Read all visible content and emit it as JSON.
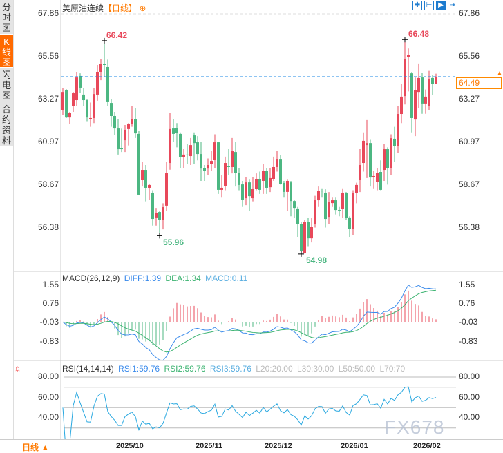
{
  "sidebar": {
    "tabs": [
      {
        "label": "分时图",
        "active": false
      },
      {
        "label": "K线图",
        "active": true
      },
      {
        "label": "闪电图",
        "active": false
      },
      {
        "label": "合约资料",
        "active": false
      }
    ]
  },
  "header": {
    "instrument": "美原油连续",
    "timeframe": "【日线】",
    "zoom_icon": "⊕"
  },
  "toolbar": {
    "icons": [
      "crosshair-icon",
      "range-icon",
      "play-icon",
      "jump-end-icon"
    ]
  },
  "colors": {
    "up": "#e8485a",
    "down": "#4cb782",
    "diff": "#3b8beb",
    "dea": "#3cb371",
    "rsi": "#29a8e0",
    "last_price": "#ff7a00",
    "last_line": "#1e88e5"
  },
  "main": {
    "y_ticks": [
      "67.86",
      "65.56",
      "63.27",
      "60.97",
      "58.67",
      "56.38"
    ],
    "last_price": "64.49",
    "high_labels": [
      {
        "text": "66.42",
        "index": 12
      },
      {
        "text": "66.48",
        "index": 99
      }
    ],
    "low_labels": [
      {
        "text": "55.96",
        "index": 28
      },
      {
        "text": "54.98",
        "index": 69
      }
    ]
  },
  "macd": {
    "label": "MACD(26,12,9)",
    "diff": "DIFF:1.39",
    "dea": "DEA:1.34",
    "macd": "MACD:0.11",
    "y_ticks": [
      "1.55",
      "0.76",
      "-0.03",
      "-0.83"
    ]
  },
  "rsi": {
    "label": "RSI(14,14,14)",
    "rsi1": "RSI1:59.76",
    "rsi2": "RSI2:59.76",
    "rsi3": "RSI3:59.76",
    "levels": [
      "L20:20.00",
      "L30:30.00",
      "L50:50.00",
      "L70:70"
    ],
    "y_ticks": [
      "80.00",
      "60.00",
      "40.00"
    ]
  },
  "bottom": {
    "period": "日线 ▲"
  },
  "watermark": "FX678",
  "chart_data": {
    "type": "candlestick",
    "title": "美原油连续【日线】",
    "ylim": [
      54.6,
      68.1
    ],
    "x_labels": [
      {
        "label": "2025/10",
        "index": 15
      },
      {
        "label": "2025/11",
        "index": 38
      },
      {
        "label": "2025/12",
        "index": 58
      },
      {
        "label": "2026/01",
        "index": 80
      },
      {
        "label": "2026/02",
        "index": 101
      }
    ],
    "ohlc": [
      [
        62.71,
        63.9,
        62.45,
        63.67
      ],
      [
        63.75,
        63.82,
        62.27,
        62.3
      ],
      [
        62.3,
        62.6,
        61.95,
        62.53
      ],
      [
        62.93,
        63.67,
        62.6,
        63.6
      ],
      [
        63.23,
        64.75,
        62.9,
        64.45
      ],
      [
        64.53,
        64.67,
        63.6,
        63.9
      ],
      [
        63.53,
        63.9,
        62.9,
        63.23
      ],
      [
        63.23,
        63.3,
        62.1,
        62.3
      ],
      [
        62.23,
        63.1,
        61.8,
        62.27
      ],
      [
        62.27,
        63.9,
        62.0,
        63.56
      ],
      [
        63.53,
        65.12,
        63.2,
        64.75
      ],
      [
        64.75,
        65.45,
        64.3,
        65.16
      ],
      [
        65.16,
        66.42,
        64.5,
        65.12
      ],
      [
        65.01,
        65.4,
        62.9,
        63.16
      ],
      [
        63.08,
        63.3,
        61.8,
        62.38
      ],
      [
        62.38,
        62.6,
        61.35,
        61.71
      ],
      [
        61.71,
        62.2,
        60.31,
        60.6
      ],
      [
        60.64,
        61.7,
        60.45,
        60.6
      ],
      [
        61.08,
        61.9,
        60.45,
        61.64
      ],
      [
        61.68,
        62.0,
        60.8,
        61.97
      ],
      [
        61.97,
        62.9,
        61.8,
        62.23
      ],
      [
        62.23,
        62.8,
        61.2,
        61.45
      ],
      [
        61.42,
        61.6,
        58.16,
        58.16
      ],
      [
        58.94,
        59.9,
        58.6,
        59.49
      ],
      [
        59.49,
        59.75,
        57.8,
        58.53
      ],
      [
        58.53,
        58.75,
        57.9,
        58.68
      ],
      [
        58.27,
        58.4,
        56.5,
        56.86
      ],
      [
        56.94,
        57.45,
        56.5,
        57.16
      ],
      [
        57.23,
        57.3,
        55.96,
        56.82
      ],
      [
        56.82,
        57.7,
        56.3,
        57.49
      ],
      [
        57.57,
        59.9,
        57.3,
        59.31
      ],
      [
        59.86,
        62.55,
        59.5,
        61.68
      ],
      [
        61.71,
        62.2,
        61.0,
        61.42
      ],
      [
        61.75,
        62.0,
        60.7,
        61.49
      ],
      [
        61.42,
        61.5,
        59.6,
        60.16
      ],
      [
        60.16,
        60.6,
        59.6,
        60.31
      ],
      [
        60.31,
        60.9,
        59.8,
        60.27
      ],
      [
        60.23,
        61.2,
        59.75,
        60.82
      ],
      [
        61.34,
        61.5,
        59.8,
        60.93
      ],
      [
        60.97,
        61.3,
        60.0,
        60.34
      ],
      [
        60.34,
        61.0,
        58.9,
        59.56
      ],
      [
        59.6,
        59.75,
        58.9,
        59.45
      ],
      [
        59.56,
        60.1,
        59.2,
        59.75
      ],
      [
        59.79,
        60.5,
        59.45,
        59.97
      ],
      [
        60.01,
        61.4,
        59.6,
        60.97
      ],
      [
        60.97,
        61.0,
        58.2,
        58.42
      ],
      [
        58.42,
        59.2,
        58.0,
        58.53
      ],
      [
        58.64,
        60.2,
        58.4,
        59.86
      ],
      [
        59.71,
        60.6,
        59.2,
        59.64
      ],
      [
        59.64,
        61.2,
        59.3,
        60.49
      ],
      [
        60.45,
        61.0,
        58.6,
        59.34
      ],
      [
        59.31,
        59.6,
        58.4,
        58.68
      ],
      [
        58.71,
        58.9,
        57.5,
        57.9
      ],
      [
        57.97,
        59.1,
        57.6,
        58.82
      ],
      [
        58.82,
        59.0,
        57.3,
        58.08
      ],
      [
        57.97,
        59.1,
        57.8,
        58.49
      ],
      [
        58.49,
        59.3,
        58.4,
        59.01
      ],
      [
        59.01,
        59.4,
        58.2,
        58.42
      ],
      [
        58.9,
        59.8,
        58.2,
        59.45
      ],
      [
        59.45,
        59.6,
        58.2,
        58.53
      ],
      [
        58.56,
        59.6,
        58.3,
        59.05
      ],
      [
        59.01,
        60.2,
        58.9,
        59.64
      ],
      [
        59.64,
        60.5,
        59.4,
        60.08
      ],
      [
        60.08,
        60.3,
        58.7,
        58.75
      ],
      [
        58.79,
        58.9,
        58.0,
        58.31
      ],
      [
        58.31,
        59.0,
        57.3,
        58.9
      ],
      [
        58.82,
        58.9,
        57.0,
        57.82
      ],
      [
        57.82,
        57.9,
        56.9,
        57.45
      ],
      [
        57.42,
        57.5,
        55.9,
        56.6
      ],
      [
        56.6,
        56.7,
        54.98,
        55.12
      ],
      [
        55.01,
        56.8,
        55.0,
        56.68
      ],
      [
        56.68,
        56.9,
        55.4,
        55.82
      ],
      [
        55.82,
        56.9,
        55.6,
        56.45
      ],
      [
        56.6,
        58.1,
        56.4,
        57.86
      ],
      [
        57.86,
        58.6,
        57.5,
        58.38
      ],
      [
        58.38,
        58.5,
        58.0,
        58.34
      ],
      [
        58.27,
        58.45,
        56.4,
        56.86
      ],
      [
        56.97,
        58.3,
        56.6,
        57.75
      ],
      [
        57.71,
        58.0,
        57.5,
        57.86
      ],
      [
        57.86,
        58.0,
        57.1,
        57.34
      ],
      [
        57.34,
        57.5,
        57.0,
        57.27
      ],
      [
        57.38,
        58.5,
        56.9,
        58.27
      ],
      [
        58.27,
        58.3,
        56.8,
        56.9
      ],
      [
        56.94,
        57.0,
        55.9,
        56.31
      ],
      [
        56.34,
        58.4,
        56.0,
        58.27
      ],
      [
        58.27,
        58.8,
        57.7,
        58.68
      ],
      [
        58.94,
        60.6,
        58.3,
        59.75
      ],
      [
        59.86,
        61.5,
        59.4,
        61.05
      ],
      [
        60.82,
        62.16,
        59.05,
        60.93
      ],
      [
        60.93,
        61.1,
        58.6,
        59.08
      ],
      [
        59.12,
        59.45,
        58.5,
        59.16
      ],
      [
        58.86,
        59.6,
        58.4,
        59.34
      ],
      [
        59.38,
        60.0,
        58.4,
        58.42
      ],
      [
        59.49,
        60.9,
        58.9,
        60.6
      ],
      [
        60.6,
        60.7,
        58.7,
        59.6
      ],
      [
        59.6,
        61.4,
        59.2,
        61.19
      ],
      [
        61.16,
        61.8,
        59.9,
        60.75
      ],
      [
        60.75,
        62.9,
        60.4,
        62.49
      ],
      [
        62.49,
        64.1,
        62.0,
        63.42
      ],
      [
        63.45,
        66.48,
        63.0,
        65.45
      ],
      [
        65.53,
        66.0,
        63.7,
        65.67
      ],
      [
        64.67,
        64.75,
        61.5,
        62.27
      ],
      [
        62.19,
        64.45,
        61.3,
        63.75
      ],
      [
        63.67,
        65.2,
        62.8,
        64.42
      ],
      [
        64.45,
        64.7,
        62.5,
        63.05
      ],
      [
        63.05,
        63.8,
        62.5,
        63.42
      ],
      [
        62.93,
        64.8,
        62.7,
        64.34
      ],
      [
        64.42,
        64.6,
        63.5,
        64.12
      ],
      [
        64.12,
        64.65,
        64.1,
        64.49
      ]
    ]
  }
}
